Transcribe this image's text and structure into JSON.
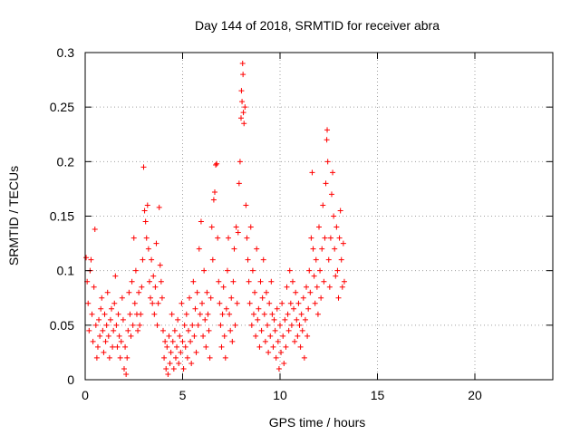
{
  "chart_data": {
    "type": "scatter",
    "title": "Day 144 of 2018, SRMTID for receiver abra",
    "xlabel": "GPS time / hours",
    "ylabel": "SRMTID / TECUs",
    "xlim": [
      0,
      24
    ],
    "ylim": [
      0,
      0.3
    ],
    "x_ticks": [
      0,
      5,
      10,
      15,
      20
    ],
    "x_tick_labels": [
      "0",
      "5",
      "10",
      "15",
      "20"
    ],
    "y_ticks": [
      0,
      0.05,
      0.1,
      0.15,
      0.2,
      0.25,
      0.3
    ],
    "y_tick_labels": [
      "0",
      "0.05",
      "0.1",
      "0.15",
      "0.2",
      "0.25",
      "0.3"
    ],
    "grid": true,
    "marker": "+",
    "marker_color": "#ff0000",
    "series": [
      {
        "name": "SRMTID",
        "points": [
          [
            0.05,
            0.112
          ],
          [
            0.1,
            0.09
          ],
          [
            0.15,
            0.07
          ],
          [
            0.2,
            0.045
          ],
          [
            0.25,
            0.1
          ],
          [
            0.3,
            0.11
          ],
          [
            0.35,
            0.06
          ],
          [
            0.4,
            0.035
          ],
          [
            0.45,
            0.085
          ],
          [
            0.5,
            0.138
          ],
          [
            0.55,
            0.05
          ],
          [
            0.6,
            0.02
          ],
          [
            0.65,
            0.03
          ],
          [
            0.7,
            0.055
          ],
          [
            0.75,
            0.04
          ],
          [
            0.8,
            0.065
          ],
          [
            0.85,
            0.075
          ],
          [
            0.9,
            0.045
          ],
          [
            0.95,
            0.025
          ],
          [
            1.0,
            0.06
          ],
          [
            1.05,
            0.035
          ],
          [
            1.1,
            0.05
          ],
          [
            1.15,
            0.08
          ],
          [
            1.2,
            0.04
          ],
          [
            1.25,
            0.02
          ],
          [
            1.3,
            0.055
          ],
          [
            1.35,
            0.065
          ],
          [
            1.4,
            0.03
          ],
          [
            1.45,
            0.045
          ],
          [
            1.5,
            0.07
          ],
          [
            1.55,
            0.095
          ],
          [
            1.6,
            0.05
          ],
          [
            1.65,
            0.03
          ],
          [
            1.7,
            0.06
          ],
          [
            1.75,
            0.04
          ],
          [
            1.8,
            0.02
          ],
          [
            1.85,
            0.035
          ],
          [
            1.9,
            0.075
          ],
          [
            1.95,
            0.055
          ],
          [
            2.0,
            0.01
          ],
          [
            2.05,
            0.03
          ],
          [
            2.1,
            0.005
          ],
          [
            2.15,
            0.02
          ],
          [
            2.2,
            0.045
          ],
          [
            2.25,
            0.08
          ],
          [
            2.3,
            0.06
          ],
          [
            2.35,
            0.04
          ],
          [
            2.4,
            0.09
          ],
          [
            2.45,
            0.05
          ],
          [
            2.5,
            0.13
          ],
          [
            2.55,
            0.07
          ],
          [
            2.6,
            0.1
          ],
          [
            2.65,
            0.06
          ],
          [
            2.7,
            0.045
          ],
          [
            2.75,
            0.08
          ],
          [
            2.8,
            0.05
          ],
          [
            2.85,
            0.06
          ],
          [
            2.9,
            0.085
          ],
          [
            2.95,
            0.11
          ],
          [
            3.0,
            0.195
          ],
          [
            3.05,
            0.155
          ],
          [
            3.1,
            0.145
          ],
          [
            3.15,
            0.13
          ],
          [
            3.2,
            0.16
          ],
          [
            3.25,
            0.12
          ],
          [
            3.3,
            0.09
          ],
          [
            3.35,
            0.075
          ],
          [
            3.4,
            0.11
          ],
          [
            3.45,
            0.07
          ],
          [
            3.5,
            0.095
          ],
          [
            3.55,
            0.06
          ],
          [
            3.6,
            0.085
          ],
          [
            3.65,
            0.125
          ],
          [
            3.7,
            0.05
          ],
          [
            3.75,
            0.07
          ],
          [
            3.8,
            0.158
          ],
          [
            3.85,
            0.105
          ],
          [
            3.9,
            0.09
          ],
          [
            3.95,
            0.075
          ],
          [
            4.0,
            0.045
          ],
          [
            4.05,
            0.02
          ],
          [
            4.1,
            0.035
          ],
          [
            4.15,
            0.01
          ],
          [
            4.2,
            0.03
          ],
          [
            4.25,
            0.005
          ],
          [
            4.3,
            0.04
          ],
          [
            4.35,
            0.015
          ],
          [
            4.4,
            0.025
          ],
          [
            4.45,
            0.06
          ],
          [
            4.5,
            0.035
          ],
          [
            4.55,
            0.01
          ],
          [
            4.6,
            0.045
          ],
          [
            4.65,
            0.02
          ],
          [
            4.7,
            0.03
          ],
          [
            4.75,
            0.055
          ],
          [
            4.8,
            0.015
          ],
          [
            4.85,
            0.04
          ],
          [
            4.9,
            0.025
          ],
          [
            4.95,
            0.07
          ],
          [
            5.0,
            0.035
          ],
          [
            5.05,
            0.01
          ],
          [
            5.1,
            0.05
          ],
          [
            5.15,
            0.03
          ],
          [
            5.2,
            0.06
          ],
          [
            5.25,
            0.02
          ],
          [
            5.3,
            0.045
          ],
          [
            5.35,
            0.075
          ],
          [
            5.4,
            0.035
          ],
          [
            5.45,
            0.015
          ],
          [
            5.5,
            0.05
          ],
          [
            5.55,
            0.09
          ],
          [
            5.6,
            0.04
          ],
          [
            5.65,
            0.065
          ],
          [
            5.7,
            0.025
          ],
          [
            5.75,
            0.08
          ],
          [
            5.8,
            0.05
          ],
          [
            5.85,
            0.12
          ],
          [
            5.9,
            0.06
          ],
          [
            5.95,
            0.145
          ],
          [
            6.0,
            0.07
          ],
          [
            6.05,
            0.04
          ],
          [
            6.1,
            0.1
          ],
          [
            6.15,
            0.055
          ],
          [
            6.2,
            0.03
          ],
          [
            6.25,
            0.08
          ],
          [
            6.3,
            0.06
          ],
          [
            6.35,
            0.045
          ],
          [
            6.4,
            0.02
          ],
          [
            6.45,
            0.075
          ],
          [
            6.5,
            0.14
          ],
          [
            6.55,
            0.11
          ],
          [
            6.6,
            0.165
          ],
          [
            6.65,
            0.172
          ],
          [
            6.7,
            0.197
          ],
          [
            6.75,
            0.198
          ],
          [
            6.8,
            0.13
          ],
          [
            6.85,
            0.09
          ],
          [
            6.9,
            0.07
          ],
          [
            6.95,
            0.05
          ],
          [
            7.0,
            0.03
          ],
          [
            7.05,
            0.06
          ],
          [
            7.1,
            0.085
          ],
          [
            7.15,
            0.04
          ],
          [
            7.2,
            0.02
          ],
          [
            7.25,
            0.065
          ],
          [
            7.3,
            0.1
          ],
          [
            7.35,
            0.13
          ],
          [
            7.4,
            0.06
          ],
          [
            7.45,
            0.045
          ],
          [
            7.5,
            0.075
          ],
          [
            7.55,
            0.035
          ],
          [
            7.6,
            0.09
          ],
          [
            7.65,
            0.12
          ],
          [
            7.7,
            0.05
          ],
          [
            7.75,
            0.14
          ],
          [
            7.8,
            0.07
          ],
          [
            7.85,
            0.135
          ],
          [
            7.9,
            0.18
          ],
          [
            7.95,
            0.2
          ],
          [
            8.0,
            0.24
          ],
          [
            8.02,
            0.265
          ],
          [
            8.05,
            0.255
          ],
          [
            8.08,
            0.29
          ],
          [
            8.1,
            0.28
          ],
          [
            8.12,
            0.245
          ],
          [
            8.15,
            0.235
          ],
          [
            8.2,
            0.25
          ],
          [
            8.25,
            0.16
          ],
          [
            8.3,
            0.13
          ],
          [
            8.35,
            0.11
          ],
          [
            8.4,
            0.09
          ],
          [
            8.45,
            0.07
          ],
          [
            8.5,
            0.14
          ],
          [
            8.55,
            0.05
          ],
          [
            8.6,
            0.1
          ],
          [
            8.65,
            0.06
          ],
          [
            8.7,
            0.08
          ],
          [
            8.75,
            0.04
          ],
          [
            8.8,
            0.12
          ],
          [
            8.85,
            0.055
          ],
          [
            8.9,
            0.065
          ],
          [
            8.95,
            0.03
          ],
          [
            9.0,
            0.09
          ],
          [
            9.05,
            0.045
          ],
          [
            9.1,
            0.075
          ],
          [
            9.15,
            0.11
          ],
          [
            9.2,
            0.06
          ],
          [
            9.25,
            0.035
          ],
          [
            9.3,
            0.08
          ],
          [
            9.35,
            0.05
          ],
          [
            9.4,
            0.025
          ],
          [
            9.45,
            0.07
          ],
          [
            9.5,
            0.04
          ],
          [
            9.55,
            0.09
          ],
          [
            9.6,
            0.06
          ],
          [
            9.65,
            0.03
          ],
          [
            9.7,
            0.055
          ],
          [
            9.75,
            0.045
          ],
          [
            9.8,
            0.02
          ],
          [
            9.85,
            0.065
          ],
          [
            9.9,
            0.035
          ],
          [
            9.95,
            0.01
          ],
          [
            10.0,
            0.05
          ],
          [
            10.05,
            0.025
          ],
          [
            10.1,
            0.07
          ],
          [
            10.15,
            0.04
          ],
          [
            10.2,
            0.015
          ],
          [
            10.25,
            0.055
          ],
          [
            10.3,
            0.03
          ],
          [
            10.35,
            0.085
          ],
          [
            10.4,
            0.06
          ],
          [
            10.45,
            0.045
          ],
          [
            10.5,
            0.1
          ],
          [
            10.55,
            0.07
          ],
          [
            10.6,
            0.05
          ],
          [
            10.65,
            0.09
          ],
          [
            10.7,
            0.065
          ],
          [
            10.75,
            0.035
          ],
          [
            10.8,
            0.08
          ],
          [
            10.85,
            0.055
          ],
          [
            10.9,
            0.04
          ],
          [
            10.95,
            0.07
          ],
          [
            11.0,
            0.05
          ],
          [
            11.05,
            0.03
          ],
          [
            11.1,
            0.06
          ],
          [
            11.15,
            0.045
          ],
          [
            11.2,
            0.075
          ],
          [
            11.25,
            0.02
          ],
          [
            11.3,
            0.055
          ],
          [
            11.35,
            0.085
          ],
          [
            11.4,
            0.04
          ],
          [
            11.45,
            0.065
          ],
          [
            11.5,
            0.1
          ],
          [
            11.55,
            0.08
          ],
          [
            11.6,
            0.13
          ],
          [
            11.65,
            0.19
          ],
          [
            11.7,
            0.12
          ],
          [
            11.75,
            0.095
          ],
          [
            11.8,
            0.07
          ],
          [
            11.85,
            0.11
          ],
          [
            11.9,
            0.085
          ],
          [
            11.95,
            0.06
          ],
          [
            12.0,
            0.14
          ],
          [
            12.05,
            0.1
          ],
          [
            12.1,
            0.075
          ],
          [
            12.15,
            0.12
          ],
          [
            12.2,
            0.16
          ],
          [
            12.25,
            0.09
          ],
          [
            12.3,
            0.13
          ],
          [
            12.35,
            0.18
          ],
          [
            12.4,
            0.22
          ],
          [
            12.42,
            0.229
          ],
          [
            12.45,
            0.2
          ],
          [
            12.5,
            0.11
          ],
          [
            12.55,
            0.085
          ],
          [
            12.6,
            0.13
          ],
          [
            12.65,
            0.17
          ],
          [
            12.7,
            0.19
          ],
          [
            12.75,
            0.15
          ],
          [
            12.8,
            0.12
          ],
          [
            12.85,
            0.095
          ],
          [
            12.9,
            0.14
          ],
          [
            12.95,
            0.1
          ],
          [
            13.0,
            0.075
          ],
          [
            13.05,
            0.13
          ],
          [
            13.1,
            0.155
          ],
          [
            13.15,
            0.11
          ],
          [
            13.2,
            0.085
          ],
          [
            13.25,
            0.125
          ],
          [
            13.3,
            0.09
          ]
        ]
      }
    ]
  }
}
